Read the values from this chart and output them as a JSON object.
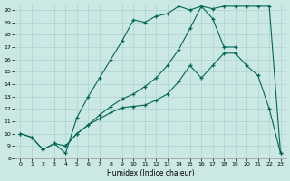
{
  "xlabel": "Humidex (Indice chaleur)",
  "bg_color": "#cce8e4",
  "grid_color": "#aad4d0",
  "line_color": "#006655",
  "xlim": [
    -0.5,
    23.5
  ],
  "ylim": [
    8,
    20.5
  ],
  "xticks": [
    0,
    1,
    2,
    3,
    4,
    5,
    6,
    7,
    8,
    9,
    10,
    11,
    12,
    13,
    14,
    15,
    16,
    17,
    18,
    19,
    20,
    21,
    22,
    23
  ],
  "yticks": [
    8,
    9,
    10,
    11,
    12,
    13,
    14,
    15,
    16,
    17,
    18,
    19,
    20
  ],
  "line1_x": [
    0,
    1,
    2,
    3,
    4,
    5,
    6,
    7,
    8,
    9,
    10,
    11,
    12,
    13,
    14,
    15,
    16,
    17,
    18,
    19
  ],
  "line1_y": [
    10,
    9.7,
    8.7,
    9.2,
    8.4,
    11.3,
    13.0,
    14.5,
    16.0,
    17.5,
    19.2,
    19.0,
    19.5,
    19.7,
    20.3,
    20.0,
    20.3,
    19.3,
    17.0,
    17.0
  ],
  "line2_x": [
    0,
    1,
    2,
    3,
    4,
    5,
    6,
    7,
    8,
    9,
    10,
    11,
    12,
    13,
    14,
    15,
    16,
    17,
    18,
    19,
    20,
    21,
    22,
    23
  ],
  "line2_y": [
    10,
    9.7,
    8.7,
    9.2,
    9.0,
    10.0,
    10.7,
    11.2,
    11.7,
    12.1,
    12.2,
    12.3,
    12.7,
    13.2,
    14.2,
    15.5,
    14.5,
    15.5,
    16.5,
    16.5,
    15.5,
    14.7,
    12.0,
    8.4
  ],
  "line3_x": [
    4,
    5,
    6,
    7,
    8,
    9,
    10,
    11,
    12,
    13,
    14,
    15,
    16,
    17,
    18,
    19,
    20,
    21,
    22,
    23
  ],
  "line3_y": [
    9.0,
    10.0,
    10.7,
    11.5,
    12.2,
    12.8,
    13.2,
    13.8,
    14.5,
    15.5,
    16.8,
    18.5,
    20.3,
    20.1,
    20.3,
    20.3,
    20.3,
    20.3,
    20.3,
    8.4
  ]
}
